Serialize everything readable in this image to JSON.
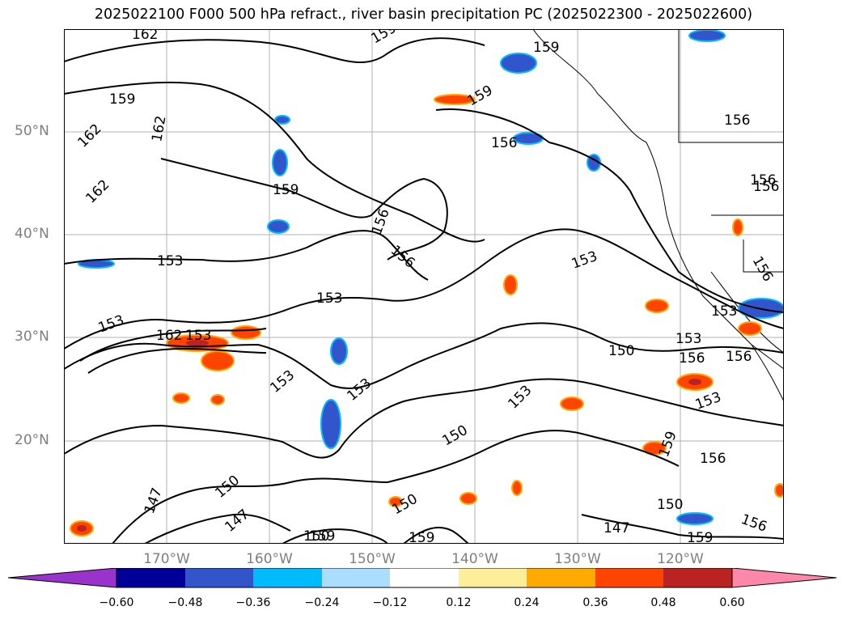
{
  "title": "2025022100 F000 500 hPa refract., river basin precipitation PC (2025022300 - 2025022600)",
  "latitude_labels": [
    "50°N",
    "40°N",
    "30°N",
    "20°N"
  ],
  "longitude_labels": [
    "170°W",
    "160°W",
    "150°W",
    "140°W",
    "130°W",
    "120°W"
  ],
  "contour_labels": [
    "162",
    "159",
    "159",
    "159",
    "159",
    "162",
    "162",
    "162",
    "159",
    "156",
    "156",
    "156",
    "156",
    "156",
    "153",
    "153",
    "153",
    "153",
    "153",
    "153",
    "153",
    "153",
    "153",
    "156",
    "162",
    "150",
    "150",
    "150",
    "150",
    "150",
    "150",
    "147",
    "147",
    "147",
    "159",
    "159",
    "156",
    "156",
    "156",
    "156",
    "159",
    "156",
    "159",
    "153",
    "153"
  ],
  "colorbar": {
    "ticks": [
      "−0.60",
      "−0.48",
      "−0.36",
      "−0.24",
      "−0.12",
      "0.12",
      "0.24",
      "0.36",
      "0.48",
      "0.60"
    ],
    "colors": [
      "#9933cc",
      "#000099",
      "#3355cc",
      "#00bbff",
      "#aaddff",
      "#ffffff",
      "#ffee99",
      "#ffaa00",
      "#ff4400",
      "#bb2222",
      "#ff88aa"
    ]
  }
}
